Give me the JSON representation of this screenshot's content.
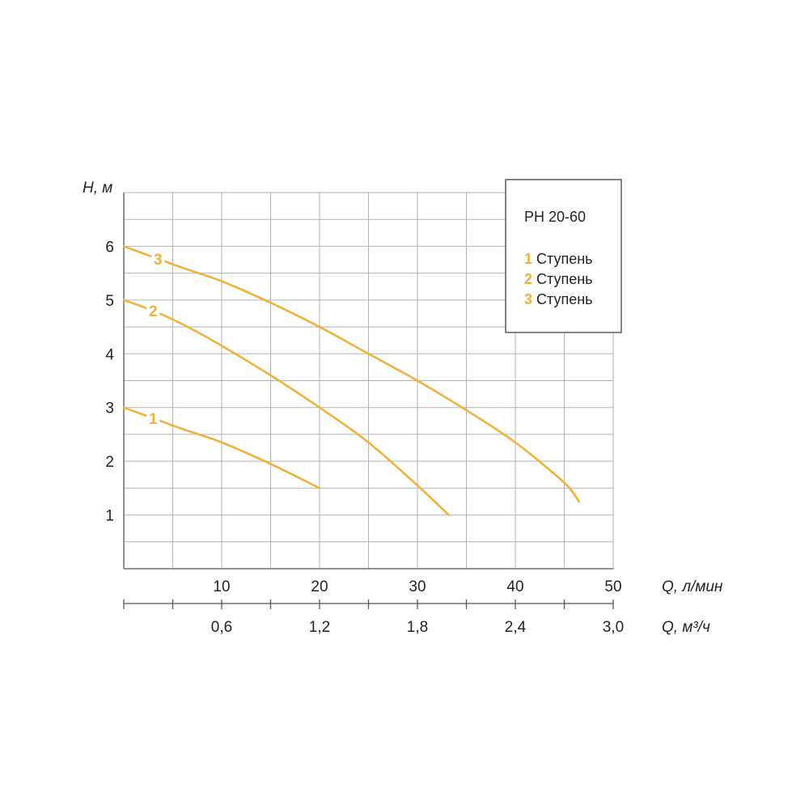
{
  "chart_data": {
    "type": "line",
    "title": "",
    "y_axis": {
      "label": "H, м",
      "ticks": [
        "1",
        "2",
        "3",
        "4",
        "5",
        "6"
      ],
      "range": [
        0,
        7
      ]
    },
    "x_axis_primary": {
      "label": "Q, л/мин",
      "ticks": [
        "10",
        "20",
        "30",
        "40",
        "50"
      ],
      "range": [
        0,
        50
      ]
    },
    "x_axis_secondary": {
      "label": "Q, м³/ч",
      "ticks": [
        "0,6",
        "1,2",
        "1,8",
        "2,4",
        "3,0"
      ],
      "range": [
        0,
        3.0
      ]
    },
    "grid": true,
    "legend": {
      "title": "PH 20-60",
      "position": "top-right",
      "entries": [
        {
          "num": "1",
          "text": "Ступень"
        },
        {
          "num": "2",
          "text": "Ступень"
        },
        {
          "num": "3",
          "text": "Ступень"
        }
      ]
    },
    "series": [
      {
        "label": "1",
        "color": "#F0B13D",
        "x": [
          0,
          3,
          6,
          10,
          15,
          20
        ],
        "y": [
          3.0,
          2.8,
          2.6,
          2.35,
          1.95,
          1.5
        ]
      },
      {
        "label": "2",
        "color": "#F0B13D",
        "x": [
          0,
          3,
          6,
          10,
          15,
          20,
          25,
          30,
          33.2
        ],
        "y": [
          5.0,
          4.8,
          4.55,
          4.15,
          3.6,
          3.0,
          2.35,
          1.55,
          1.0
        ]
      },
      {
        "label": "3",
        "color": "#F0B13D",
        "x": [
          0,
          3,
          6,
          10,
          15,
          20,
          25,
          30,
          35,
          40,
          45,
          46.5
        ],
        "y": [
          6.0,
          5.8,
          5.6,
          5.35,
          4.95,
          4.5,
          4.0,
          3.5,
          2.95,
          2.35,
          1.6,
          1.25
        ]
      }
    ]
  }
}
